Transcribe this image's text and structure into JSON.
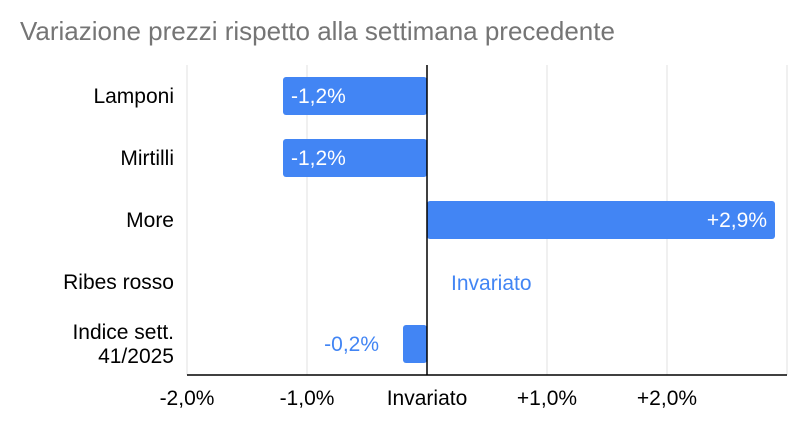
{
  "chart_data": {
    "type": "bar",
    "orientation": "horizontal",
    "title": "Variazione prezzi rispetto alla settimana precedente",
    "categories": [
      "Lamponi",
      "Mirtilli",
      "More",
      "Ribes rosso",
      "Indice sett. 41/2025"
    ],
    "values": [
      -1.2,
      -1.2,
      2.9,
      0.0,
      -0.2
    ],
    "value_labels": [
      "-1,2%",
      "-1,2%",
      "+2,9%",
      "Invariato",
      "-0,2%"
    ],
    "x_ticks": [
      -2,
      -1,
      0,
      1,
      2
    ],
    "x_tick_labels": [
      "-2,0%",
      "-1,0%",
      "Invariato",
      "+1,0%",
      "+2,0%"
    ],
    "xlim": [
      -2.0,
      3.0
    ],
    "grid": true,
    "bar_color": "#4285f4",
    "xlabel": "",
    "ylabel": ""
  }
}
